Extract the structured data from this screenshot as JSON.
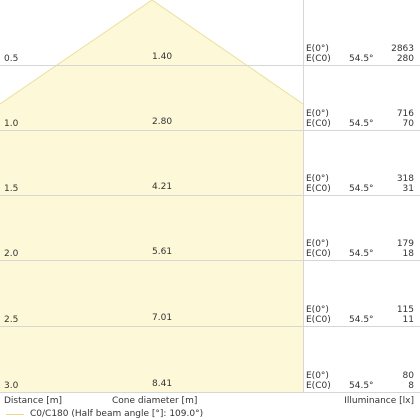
{
  "diagram": {
    "rows": [
      {
        "distance": "0.5",
        "diameter": "1.40",
        "e0_label": "E(0°)",
        "ec0_label": "E(C0)",
        "angle": "54.5°",
        "e0_value": "2863",
        "ec0_value": "280"
      },
      {
        "distance": "1.0",
        "diameter": "2.80",
        "e0_label": "E(0°)",
        "ec0_label": "E(C0)",
        "angle": "54.5°",
        "e0_value": "716",
        "ec0_value": "70"
      },
      {
        "distance": "1.5",
        "diameter": "4.21",
        "e0_label": "E(0°)",
        "ec0_label": "E(C0)",
        "angle": "54.5°",
        "e0_value": "318",
        "ec0_value": "31"
      },
      {
        "distance": "2.0",
        "diameter": "5.61",
        "e0_label": "E(0°)",
        "ec0_label": "E(C0)",
        "angle": "54.5°",
        "e0_value": "179",
        "ec0_value": "18"
      },
      {
        "distance": "2.5",
        "diameter": "7.01",
        "e0_label": "E(0°)",
        "ec0_label": "E(C0)",
        "angle": "54.5°",
        "e0_value": "115",
        "ec0_value": "11"
      },
      {
        "distance": "3.0",
        "diameter": "8.41",
        "e0_label": "E(0°)",
        "ec0_label": "E(C0)",
        "angle": "54.5°",
        "e0_value": "80",
        "ec0_value": "8"
      }
    ],
    "axis_labels": {
      "distance": "Distance [m]",
      "diameter": "Cone diameter [m]",
      "illuminance": "Illuminance [lx]"
    },
    "legend": "C0/C180 (Half beam angle [°]: 109.0°)",
    "colors": {
      "cone_fill": "#fcf8d8",
      "cone_edge": "#eadf9c",
      "grid": "#d6d6d6",
      "text": "#333333"
    }
  }
}
